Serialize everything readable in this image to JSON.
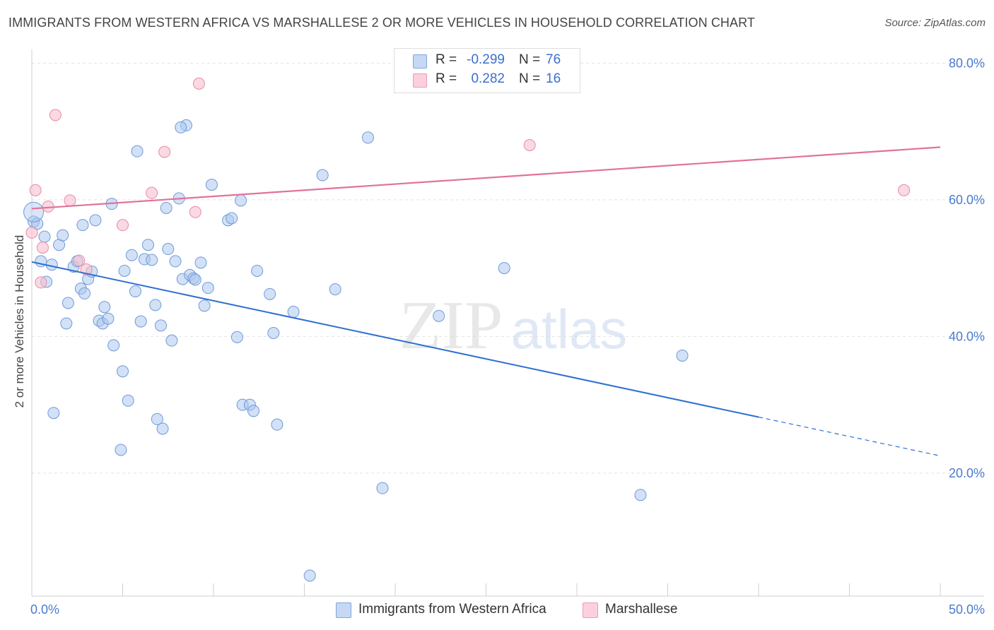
{
  "header": {
    "title": "IMMIGRANTS FROM WESTERN AFRICA VS MARSHALLESE 2 OR MORE VEHICLES IN HOUSEHOLD CORRELATION CHART",
    "source": "Source: ZipAtlas.com"
  },
  "watermark": {
    "zip": "ZIP",
    "atlas": "atlas"
  },
  "legend": {
    "rows": [
      {
        "r_label": "R =",
        "r_value": "-0.299",
        "n_label": "N =",
        "n_value": "76"
      },
      {
        "r_label": "R =",
        "r_value": "0.282",
        "n_label": "N =",
        "n_value": "16"
      }
    ]
  },
  "colors": {
    "blue_fill": "#adc8ef",
    "blue_stroke": "#6f9ad8",
    "blue_line": "#2f6fd1",
    "pink_fill": "#f7bfcf",
    "pink_stroke": "#e88aa5",
    "pink_line": "#e0729b",
    "tick": "#4a7bd0",
    "grid": "#e3e3e3"
  },
  "chart_data": {
    "type": "scatter",
    "title": "IMMIGRANTS FROM WESTERN AFRICA VS MARSHALLESE 2 OR MORE VEHICLES IN HOUSEHOLD CORRELATION CHART",
    "xlabel": "",
    "ylabel": "2 or more Vehicles in Household",
    "xlim": [
      0,
      50
    ],
    "ylim": [
      2,
      82
    ],
    "x_tick_labels": [
      "0.0%",
      "50.0%"
    ],
    "y_ticks": [
      20,
      40,
      60,
      80
    ],
    "y_tick_labels": [
      "20.0%",
      "40.0%",
      "60.0%",
      "80.0%"
    ],
    "grid": true,
    "legend_placement": "bottom",
    "series": [
      {
        "name": "Immigrants from Western Africa",
        "color": "#adc8ef",
        "trend": {
          "x": [
            0.0,
            40.0
          ],
          "y": [
            50.9,
            28.2
          ],
          "dashed_extension_to_x": 50.0
        },
        "points": [
          [
            0.1,
            56.8
          ],
          [
            0.3,
            56.5
          ],
          [
            0.5,
            51.0
          ],
          [
            0.7,
            54.6
          ],
          [
            0.8,
            48.0
          ],
          [
            1.1,
            50.5
          ],
          [
            1.2,
            28.8
          ],
          [
            1.5,
            53.4
          ],
          [
            1.7,
            54.8
          ],
          [
            1.9,
            41.9
          ],
          [
            2.0,
            44.9
          ],
          [
            2.3,
            50.2
          ],
          [
            2.5,
            51.0
          ],
          [
            2.7,
            47.0
          ],
          [
            2.8,
            56.3
          ],
          [
            2.9,
            46.3
          ],
          [
            3.1,
            48.4
          ],
          [
            3.3,
            49.5
          ],
          [
            3.5,
            57.0
          ],
          [
            3.7,
            42.3
          ],
          [
            3.9,
            41.9
          ],
          [
            4.0,
            44.3
          ],
          [
            4.2,
            42.6
          ],
          [
            4.4,
            59.4
          ],
          [
            4.5,
            38.7
          ],
          [
            4.9,
            23.4
          ],
          [
            5.0,
            34.9
          ],
          [
            5.1,
            49.6
          ],
          [
            5.3,
            30.6
          ],
          [
            5.5,
            51.9
          ],
          [
            5.7,
            46.6
          ],
          [
            5.8,
            67.1
          ],
          [
            6.0,
            42.2
          ],
          [
            6.2,
            51.3
          ],
          [
            6.4,
            53.4
          ],
          [
            6.6,
            51.2
          ],
          [
            6.8,
            44.6
          ],
          [
            6.9,
            27.9
          ],
          [
            7.1,
            41.6
          ],
          [
            7.2,
            26.5
          ],
          [
            7.5,
            52.8
          ],
          [
            7.7,
            39.4
          ],
          [
            7.9,
            51.0
          ],
          [
            8.1,
            60.2
          ],
          [
            8.3,
            48.4
          ],
          [
            8.5,
            70.9
          ],
          [
            8.7,
            49.0
          ],
          [
            8.9,
            48.5
          ],
          [
            9.0,
            48.3
          ],
          [
            9.3,
            50.8
          ],
          [
            9.5,
            44.5
          ],
          [
            9.7,
            47.1
          ],
          [
            9.9,
            62.2
          ],
          [
            10.8,
            57.0
          ],
          [
            11.0,
            57.3
          ],
          [
            11.3,
            39.9
          ],
          [
            11.5,
            59.9
          ],
          [
            11.6,
            30.0
          ],
          [
            12.0,
            30.0
          ],
          [
            12.2,
            29.1
          ],
          [
            12.4,
            49.6
          ],
          [
            13.1,
            46.2
          ],
          [
            13.3,
            40.5
          ],
          [
            13.5,
            27.1
          ],
          [
            14.4,
            43.6
          ],
          [
            16.0,
            63.6
          ],
          [
            16.7,
            46.9
          ],
          [
            18.5,
            69.1
          ],
          [
            19.3,
            17.8
          ],
          [
            22.4,
            43.0
          ],
          [
            26.0,
            50.0
          ],
          [
            33.5,
            16.8
          ],
          [
            35.8,
            37.2
          ],
          [
            15.3,
            5.0
          ],
          [
            8.2,
            70.6
          ],
          [
            7.4,
            58.8
          ]
        ]
      },
      {
        "name": "Marshallese",
        "color": "#f7bfcf",
        "trend": {
          "x": [
            0.0,
            50.0
          ],
          "y": [
            58.7,
            67.7
          ]
        },
        "points": [
          [
            0.0,
            55.2
          ],
          [
            0.2,
            61.4
          ],
          [
            0.5,
            47.9
          ],
          [
            0.6,
            53.0
          ],
          [
            0.9,
            59.0
          ],
          [
            1.3,
            72.4
          ],
          [
            2.1,
            59.9
          ],
          [
            2.6,
            51.1
          ],
          [
            3.0,
            49.8
          ],
          [
            5.0,
            56.3
          ],
          [
            6.6,
            61.0
          ],
          [
            7.3,
            67.0
          ],
          [
            9.0,
            58.2
          ],
          [
            9.2,
            77.0
          ],
          [
            27.4,
            68.0
          ],
          [
            48.0,
            61.4
          ]
        ]
      }
    ]
  },
  "bottom_legend": {
    "items": [
      {
        "label": "Immigrants from Western Africa"
      },
      {
        "label": "Marshallese"
      }
    ]
  }
}
